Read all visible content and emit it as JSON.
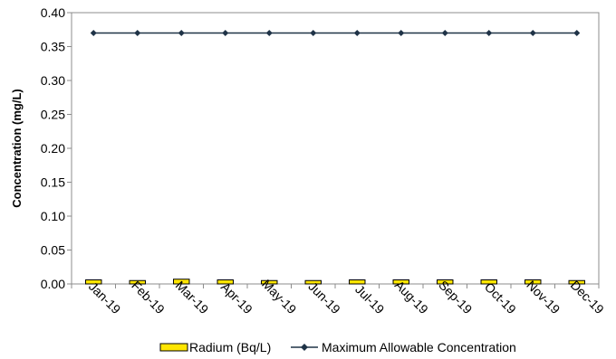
{
  "chart_data": {
    "type": "bar",
    "title": "",
    "xlabel": "",
    "ylabel": "Concentration (mg/L)",
    "ylim": [
      0,
      0.4
    ],
    "yticks": [
      "0.00",
      "0.05",
      "0.10",
      "0.15",
      "0.20",
      "0.25",
      "0.30",
      "0.35",
      "0.40"
    ],
    "categories": [
      "Jan-19",
      "Feb-19",
      "Mar-19",
      "Apr-19",
      "May-19",
      "Jun-19",
      "Jul-19",
      "Aug-19",
      "Sep-19",
      "Oct-19",
      "Nov-19",
      "Dec-19"
    ],
    "series": [
      {
        "name": "Radium (Bq/L)",
        "type": "bar",
        "color": "#ffe600",
        "border": "#000000",
        "values": [
          0.006,
          0.005,
          0.007,
          0.006,
          0.005,
          0.005,
          0.006,
          0.006,
          0.006,
          0.006,
          0.006,
          0.005
        ]
      },
      {
        "name": "Maximum Allowable Concentration",
        "type": "line",
        "marker": "diamond",
        "color": "#1f3347",
        "values": [
          0.37,
          0.37,
          0.37,
          0.37,
          0.37,
          0.37,
          0.37,
          0.37,
          0.37,
          0.37,
          0.37,
          0.37
        ]
      }
    ],
    "grid": false,
    "legend_position": "bottom"
  }
}
